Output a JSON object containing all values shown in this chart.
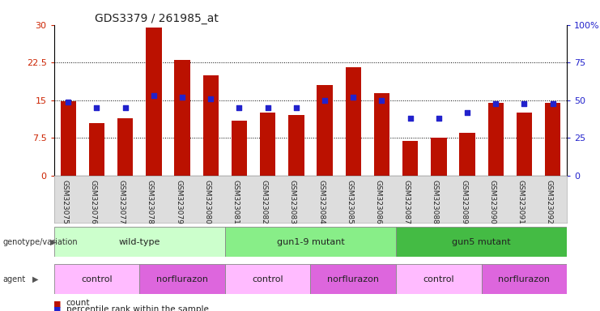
{
  "title": "GDS3379 / 261985_at",
  "samples": [
    "GSM323075",
    "GSM323076",
    "GSM323077",
    "GSM323078",
    "GSM323079",
    "GSM323080",
    "GSM323081",
    "GSM323082",
    "GSM323083",
    "GSM323084",
    "GSM323085",
    "GSM323086",
    "GSM323087",
    "GSM323088",
    "GSM323089",
    "GSM323090",
    "GSM323091",
    "GSM323092"
  ],
  "counts": [
    14.8,
    10.5,
    11.5,
    29.5,
    23.0,
    20.0,
    11.0,
    12.5,
    12.0,
    18.0,
    21.5,
    16.5,
    7.0,
    7.5,
    8.5,
    14.5,
    12.5,
    14.5
  ],
  "percentiles": [
    49,
    45,
    45,
    53,
    52,
    51,
    45,
    45,
    45,
    50,
    52,
    50,
    38,
    38,
    42,
    48,
    48,
    48
  ],
  "ylim_left": [
    0,
    30
  ],
  "ylim_right": [
    0,
    100
  ],
  "yticks_left": [
    0,
    7.5,
    15,
    22.5,
    30
  ],
  "yticks_right": [
    0,
    25,
    50,
    75,
    100
  ],
  "bar_color": "#bb1100",
  "dot_color": "#2222cc",
  "genotype_groups": [
    {
      "label": "wild-type",
      "start": 0,
      "end": 6,
      "color": "#ccffcc"
    },
    {
      "label": "gun1-9 mutant",
      "start": 6,
      "end": 12,
      "color": "#88ee88"
    },
    {
      "label": "gun5 mutant",
      "start": 12,
      "end": 18,
      "color": "#44bb44"
    }
  ],
  "agent_groups": [
    {
      "label": "control",
      "start": 0,
      "end": 3,
      "color": "#ffbbff"
    },
    {
      "label": "norflurazon",
      "start": 3,
      "end": 6,
      "color": "#dd66dd"
    },
    {
      "label": "control",
      "start": 6,
      "end": 9,
      "color": "#ffbbff"
    },
    {
      "label": "norflurazon",
      "start": 9,
      "end": 12,
      "color": "#dd66dd"
    },
    {
      "label": "control",
      "start": 12,
      "end": 15,
      "color": "#ffbbff"
    },
    {
      "label": "norflurazon",
      "start": 15,
      "end": 18,
      "color": "#dd66dd"
    }
  ],
  "bg_color": "#ffffff",
  "left_label_color": "#cc2200",
  "right_label_color": "#2222cc"
}
